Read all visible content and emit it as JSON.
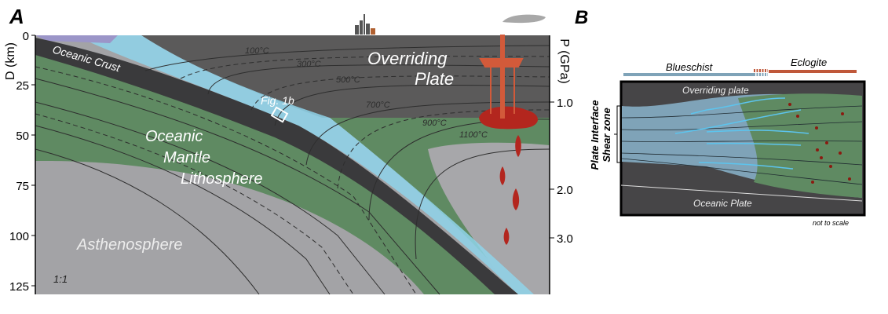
{
  "panel_a": {
    "letter": "A",
    "left_axis": {
      "label": "D (km)",
      "ticks": [
        "0",
        "25",
        "50",
        "75",
        "100",
        "125"
      ]
    },
    "right_axis": {
      "label": "P (GPa)",
      "ticks": [
        "1.0",
        "2.0",
        "3.0"
      ]
    },
    "isotherms": [
      "100°C",
      "300°C",
      "500°C",
      "700°C",
      "900°C",
      "1100°C"
    ],
    "labels": {
      "oceanic_crust": "Oceanic Crust",
      "overriding_plate_1": "Overriding",
      "overriding_plate_2": "Plate",
      "fig_ref": "Fig. 1b",
      "mantle_1": "Oceanic",
      "mantle_2": "Mantle",
      "mantle_3": "Lithosphere",
      "asthenosphere": "Asthenosphere",
      "scale": "1:1"
    },
    "colors": {
      "overriding": "#5b5a5a",
      "mantle": "#5f8a62",
      "astheno": "#a3a3a6",
      "crust": "#3a3a3c",
      "melt": "#b3261e",
      "ocean": "#9b95c8",
      "interface": "#8fd3ea"
    }
  },
  "panel_b": {
    "letter": "B",
    "blueschist": "Blueschist",
    "eclogite": "Eclogite",
    "overriding_plate": "Overriding plate",
    "oceanic_plate": "Oceanic Plate",
    "shear_zone_1": "Plate Interface",
    "shear_zone_2": "Shear zone",
    "note": "not to scale",
    "colors": {
      "blueschist": "#7fa3b8",
      "eclogite": "#c0583a"
    }
  }
}
